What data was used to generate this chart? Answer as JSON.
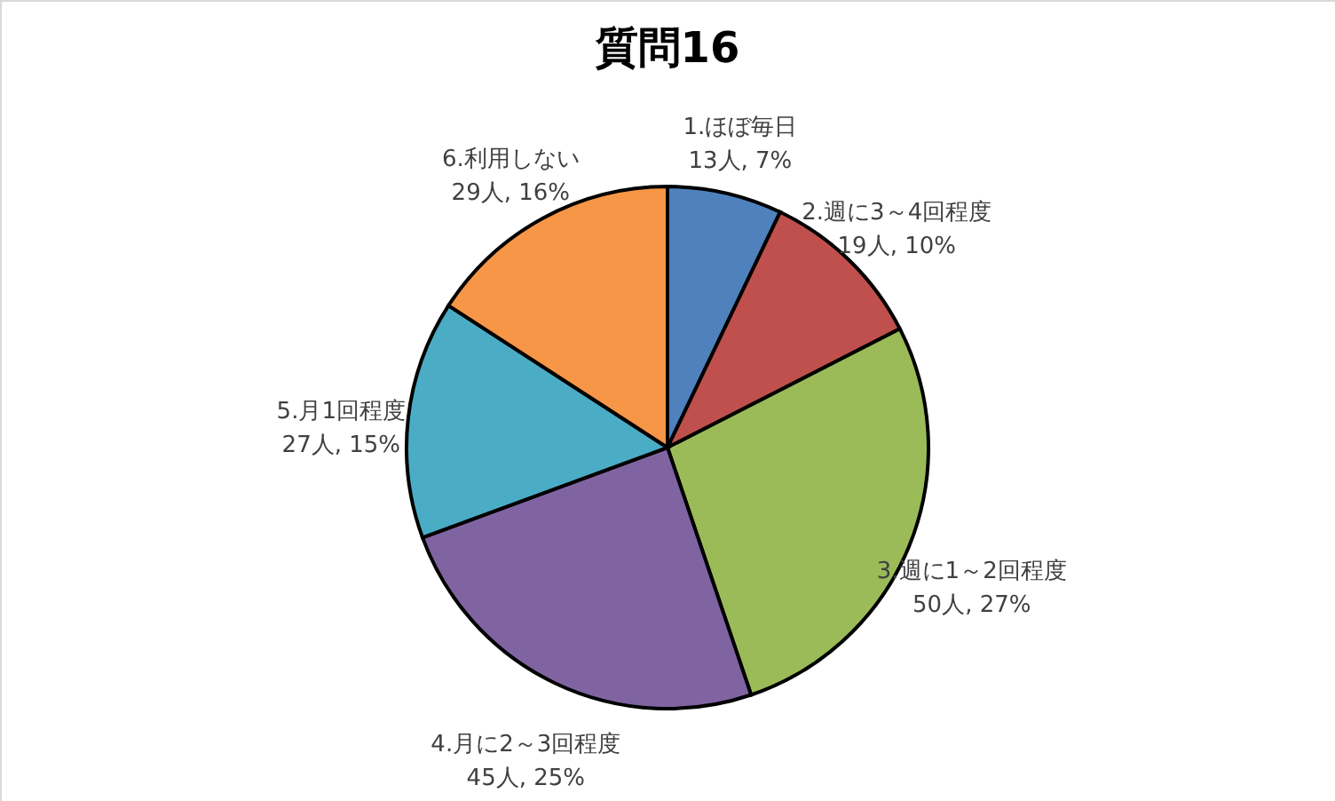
{
  "chart_data": {
    "type": "pie",
    "title": "質問16",
    "categories": [
      "1.ほぼ毎日",
      "2.週に3～4回程度",
      "3.週に1～2回程度",
      "4.月に2～3回程度",
      "5.月1回程度",
      "6.利用しない"
    ],
    "values": [
      13,
      19,
      50,
      45,
      27,
      29
    ],
    "value_labels": [
      "13人, 7%",
      "19人, 10%",
      "50人, 27%",
      "45人, 25%",
      "27人, 15%",
      "29人, 16%"
    ],
    "colors": [
      "#4f81bd",
      "#c0504d",
      "#9bbb59",
      "#8064a2",
      "#4bacc6",
      "#f79646"
    ],
    "legend": false
  }
}
